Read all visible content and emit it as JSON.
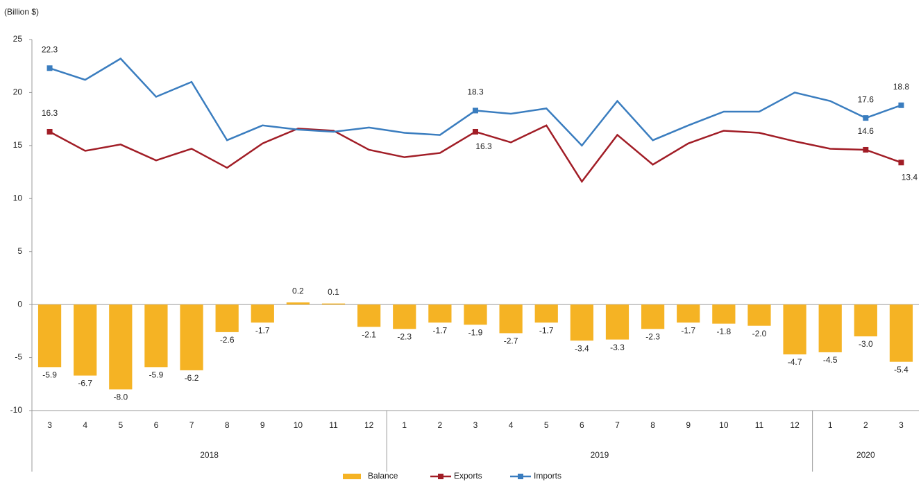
{
  "chart_data": {
    "type": "bar-line",
    "y_axis_label": "(Billion $)",
    "categories": [
      "3",
      "4",
      "5",
      "6",
      "7",
      "8",
      "9",
      "10",
      "11",
      "12",
      "1",
      "2",
      "3",
      "4",
      "5",
      "6",
      "7",
      "8",
      "9",
      "10",
      "11",
      "12",
      "1",
      "2",
      "3"
    ],
    "category_groups": [
      {
        "label": "2018",
        "size": 10
      },
      {
        "label": "2019",
        "size": 12
      },
      {
        "label": "2020",
        "size": 3
      }
    ],
    "ylim": [
      -10,
      25
    ],
    "yticks": [
      -10,
      -5,
      0,
      5,
      10,
      15,
      20,
      25
    ],
    "legend": "bottom",
    "series": [
      {
        "name": "Balance",
        "type": "bar",
        "color": "#f5b324",
        "values": [
          -5.9,
          -6.7,
          -8.0,
          -5.9,
          -6.2,
          -2.6,
          -1.7,
          0.2,
          0.1,
          -2.1,
          -2.3,
          -1.7,
          -1.9,
          -2.7,
          -1.7,
          -3.4,
          -3.3,
          -2.3,
          -1.7,
          -1.8,
          -2.0,
          -4.7,
          -4.5,
          -3.0,
          -5.4
        ],
        "value_labels": [
          "-5.9",
          "-6.7",
          "-8.0",
          "-5.9",
          "-6.2",
          "-2.6",
          "-1.7",
          "0.2",
          "0.1",
          "-2.1",
          "-2.3",
          "-1.7",
          "-1.9",
          "-2.7",
          "-1.7",
          "-3.4",
          "-3.3",
          "-2.3",
          "-1.7",
          "-1.8",
          "-2.0",
          "-4.7",
          "-4.5",
          "-3.0",
          "-5.4"
        ]
      },
      {
        "name": "Exports",
        "type": "line",
        "color": "#a11d26",
        "values": [
          16.3,
          14.5,
          15.1,
          13.6,
          14.7,
          12.9,
          15.2,
          16.6,
          16.4,
          14.6,
          13.9,
          14.3,
          16.3,
          15.3,
          16.9,
          11.6,
          16.0,
          13.2,
          15.2,
          16.4,
          16.2,
          15.4,
          14.7,
          14.6,
          13.4
        ],
        "value_labels": [
          "16.3",
          null,
          null,
          null,
          null,
          null,
          null,
          null,
          null,
          null,
          null,
          null,
          "16.3",
          null,
          null,
          null,
          null,
          null,
          null,
          null,
          null,
          null,
          null,
          "14.6",
          "13.4"
        ]
      },
      {
        "name": "Imports",
        "type": "line",
        "color": "#3a7dbf",
        "values": [
          22.3,
          21.2,
          23.2,
          19.6,
          21.0,
          15.5,
          16.9,
          16.5,
          16.3,
          16.7,
          16.2,
          16.0,
          18.3,
          18.0,
          18.5,
          15.0,
          19.2,
          15.5,
          16.9,
          18.2,
          18.2,
          20.0,
          19.2,
          17.6,
          18.8
        ],
        "value_labels": [
          "22.3",
          null,
          null,
          null,
          null,
          null,
          null,
          null,
          null,
          null,
          null,
          null,
          "18.3",
          null,
          null,
          null,
          null,
          null,
          null,
          null,
          null,
          null,
          null,
          "17.6",
          "18.8"
        ]
      }
    ]
  }
}
